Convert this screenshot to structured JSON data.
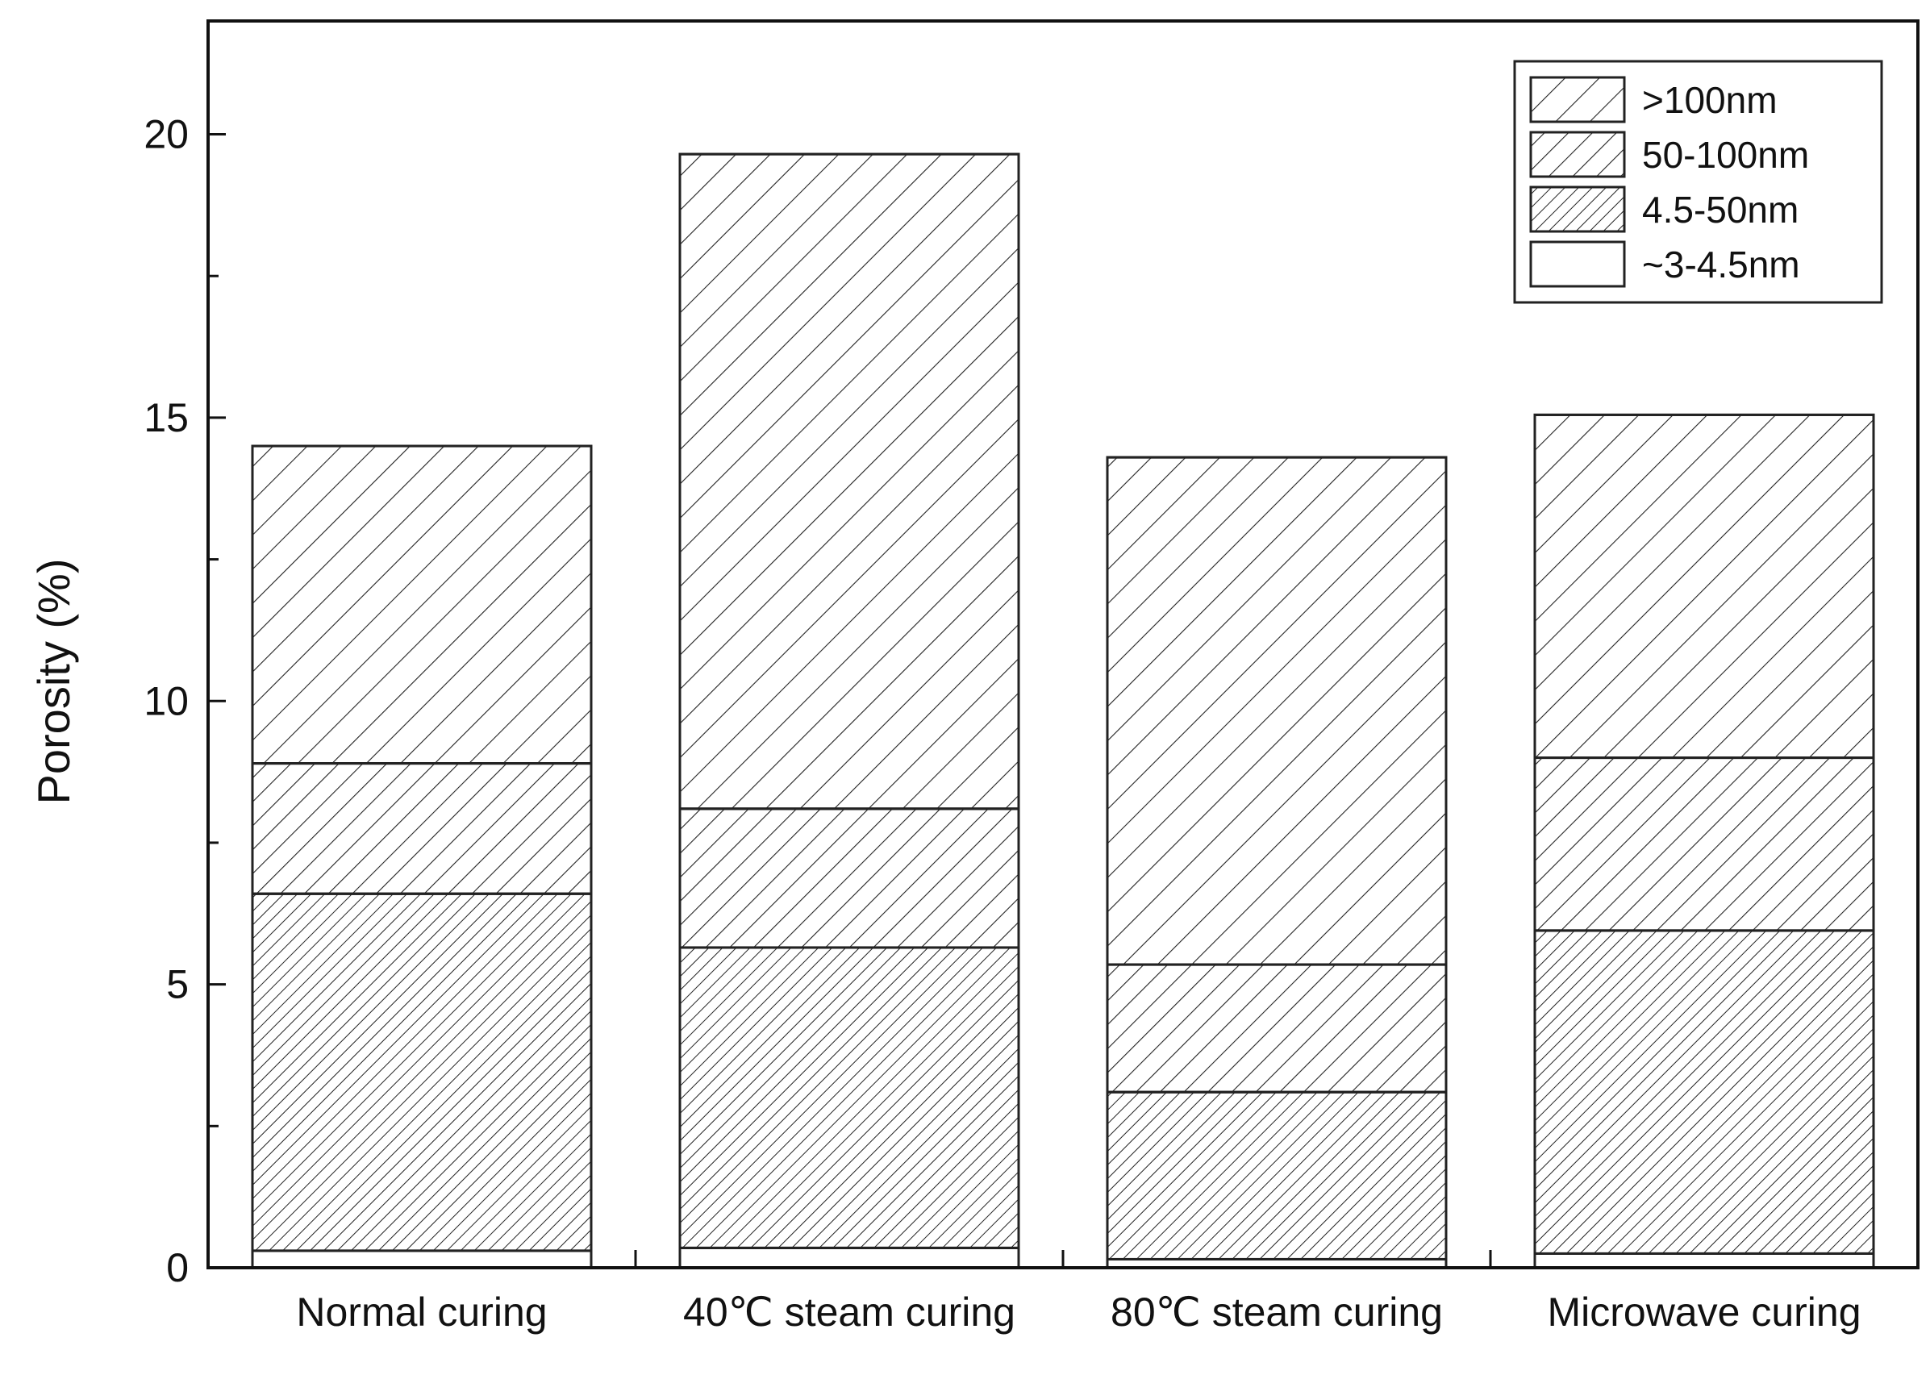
{
  "chart_data": {
    "type": "bar",
    "stacked": true,
    "title": "",
    "xlabel": "",
    "ylabel": "Porosity (%)",
    "ylim": [
      0,
      22
    ],
    "yticks": [
      0,
      5,
      10,
      15,
      20
    ],
    "grid": false,
    "legend_position": "top-right",
    "categories": [
      "Normal curing",
      "40℃ steam curing",
      "80℃ steam curing",
      "Microwave curing"
    ],
    "series": [
      {
        "name": "~3-4.5nm",
        "pattern": "none",
        "values": [
          0.3,
          0.35,
          0.15,
          0.25
        ]
      },
      {
        "name": "4.5-50nm",
        "pattern": "dense-hatch",
        "values": [
          6.3,
          5.3,
          2.95,
          5.7
        ]
      },
      {
        "name": "50-100nm",
        "pattern": "medium-hatch",
        "values": [
          2.3,
          2.45,
          2.25,
          3.05
        ]
      },
      {
        "name": ">100nm",
        "pattern": "sparse-hatch",
        "values": [
          5.6,
          11.55,
          8.95,
          6.05
        ]
      }
    ],
    "legend_order": [
      ">100nm",
      "50-100nm",
      "4.5-50nm",
      "~3-4.5nm"
    ]
  }
}
